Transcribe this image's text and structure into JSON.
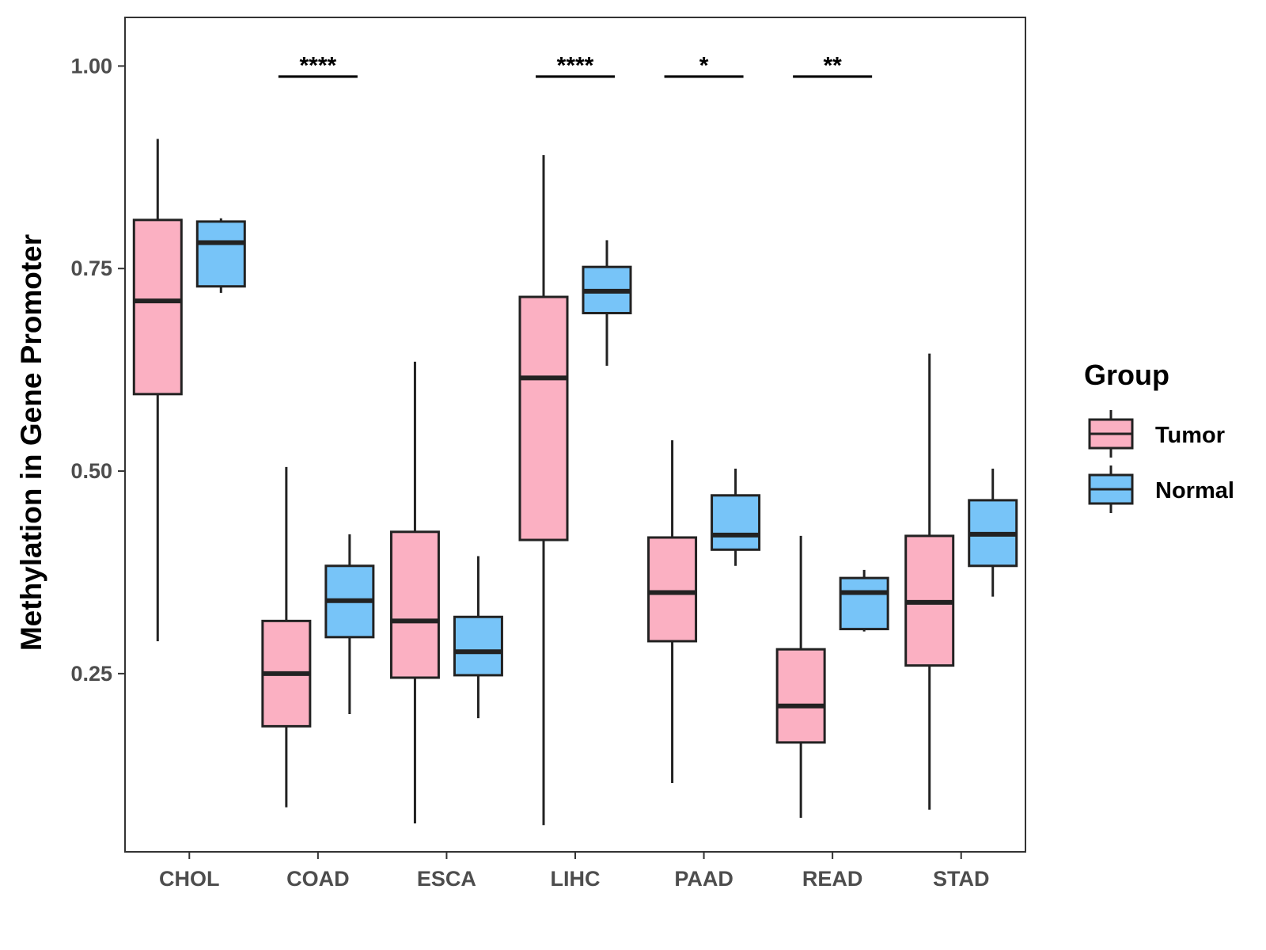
{
  "chart_data": {
    "type": "boxplot",
    "title": "",
    "xlabel": "",
    "ylabel": "Methylation in Gene Promoter",
    "ylim": [
      0.03,
      1.06
    ],
    "yticks": [
      "0.25",
      "0.50",
      "0.75",
      "1.00"
    ],
    "grid": false,
    "categories": [
      "CHOL",
      "COAD",
      "ESCA",
      "LIHC",
      "PAAD",
      "READ",
      "STAD"
    ],
    "legend": {
      "title": "Group",
      "position": "right",
      "entries": [
        "Tumor",
        "Normal"
      ]
    },
    "colors": {
      "Tumor": "#fbb0c2",
      "Normal": "#77c4f8",
      "stroke": "#222222"
    },
    "series": [
      {
        "name": "Tumor",
        "boxes": [
          {
            "category": "CHOL",
            "min": 0.29,
            "q1": 0.595,
            "median": 0.71,
            "q3": 0.81,
            "max": 0.91
          },
          {
            "category": "COAD",
            "min": 0.085,
            "q1": 0.185,
            "median": 0.25,
            "q3": 0.315,
            "max": 0.505
          },
          {
            "category": "ESCA",
            "min": 0.065,
            "q1": 0.245,
            "median": 0.315,
            "q3": 0.425,
            "max": 0.635
          },
          {
            "category": "LIHC",
            "min": 0.063,
            "q1": 0.415,
            "median": 0.615,
            "q3": 0.715,
            "max": 0.89
          },
          {
            "category": "PAAD",
            "min": 0.115,
            "q1": 0.29,
            "median": 0.35,
            "q3": 0.418,
            "max": 0.538
          },
          {
            "category": "READ",
            "min": 0.072,
            "q1": 0.165,
            "median": 0.21,
            "q3": 0.28,
            "max": 0.42
          },
          {
            "category": "STAD",
            "min": 0.082,
            "q1": 0.26,
            "median": 0.338,
            "q3": 0.42,
            "max": 0.645
          }
        ]
      },
      {
        "name": "Normal",
        "boxes": [
          {
            "category": "CHOL",
            "min": 0.72,
            "q1": 0.728,
            "median": 0.782,
            "q3": 0.808,
            "max": 0.812
          },
          {
            "category": "COAD",
            "min": 0.2,
            "q1": 0.295,
            "median": 0.34,
            "q3": 0.383,
            "max": 0.422
          },
          {
            "category": "ESCA",
            "min": 0.195,
            "q1": 0.248,
            "median": 0.277,
            "q3": 0.32,
            "max": 0.395
          },
          {
            "category": "LIHC",
            "min": 0.63,
            "q1": 0.695,
            "median": 0.722,
            "q3": 0.752,
            "max": 0.785
          },
          {
            "category": "PAAD",
            "min": 0.383,
            "q1": 0.403,
            "median": 0.421,
            "q3": 0.47,
            "max": 0.503
          },
          {
            "category": "READ",
            "min": 0.302,
            "q1": 0.305,
            "median": 0.35,
            "q3": 0.368,
            "max": 0.378
          },
          {
            "category": "STAD",
            "min": 0.345,
            "q1": 0.383,
            "median": 0.422,
            "q3": 0.464,
            "max": 0.503
          }
        ]
      }
    ],
    "annotations": [
      {
        "category": "CHOL",
        "label": ""
      },
      {
        "category": "COAD",
        "label": "****"
      },
      {
        "category": "ESCA",
        "label": ""
      },
      {
        "category": "LIHC",
        "label": "****"
      },
      {
        "category": "PAAD",
        "label": "*"
      },
      {
        "category": "READ",
        "label": "**"
      },
      {
        "category": "STAD",
        "label": ""
      }
    ]
  }
}
